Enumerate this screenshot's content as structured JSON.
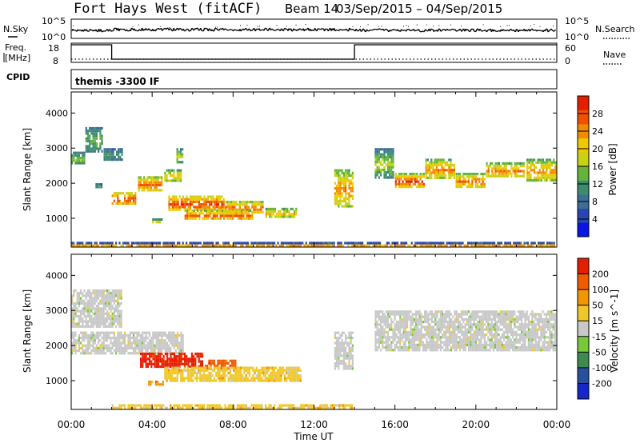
{
  "header": {
    "title": "Fort Hays West (fitACF)",
    "beam": "Beam 14",
    "date_range": "03/Sep/2015 – 04/Sep/2015"
  },
  "sky_panel": {
    "left_label": "N.Sky",
    "left_tick_top": "10^5",
    "left_tick_bottom": "10^0",
    "right_label": "N.Search",
    "right_tick_top": "10^5",
    "right_tick_bottom": "10^0"
  },
  "freq_panel": {
    "left_label_1": "Freq.",
    "left_label_2": "[MHz]",
    "left_tick_top": "18",
    "left_tick_bottom": "8",
    "right_label": "Nave",
    "right_tick_top": "60",
    "right_tick_bottom": "0",
    "freq_steps": [
      {
        "from_hour": 0,
        "to_hour": 2,
        "mhz": 18
      },
      {
        "from_hour": 2,
        "to_hour": 14,
        "mhz": 10.5
      },
      {
        "from_hour": 14,
        "to_hour": 24,
        "mhz": 18
      }
    ],
    "nave_level": 10
  },
  "cpid_panel": {
    "left_label": "CPID",
    "text": "themis -3300 IF"
  },
  "x_axis": {
    "label": "Time UT",
    "min_hour": 0,
    "max_hour": 24,
    "ticks": [
      {
        "hour": 0,
        "label": "00:00"
      },
      {
        "hour": 4,
        "label": "04:00"
      },
      {
        "hour": 8,
        "label": "08:00"
      },
      {
        "hour": 12,
        "label": "12:00"
      },
      {
        "hour": 16,
        "label": "16:00"
      },
      {
        "hour": 20,
        "label": "20:00"
      },
      {
        "hour": 24,
        "label": "00:00"
      }
    ]
  },
  "chart_data": [
    {
      "type": "heatmap",
      "quantity": "Power",
      "ylabel": "Slant Range [km]",
      "ylim": [
        180,
        4600
      ],
      "yticks": [
        1000,
        2000,
        3000,
        4000
      ],
      "colorbar": {
        "label": "Power [dB]",
        "tick_values": [
          4,
          8,
          12,
          16,
          20,
          24,
          28
        ],
        "min": 0,
        "max": 32,
        "colors": [
          "#0a14e6",
          "#2846b4",
          "#3c6e96",
          "#3c8c6e",
          "#64b43c",
          "#c8d214",
          "#f0c800",
          "#f08c00",
          "#f05000",
          "#e61e00"
        ]
      },
      "regions": [
        {
          "t0": 0.0,
          "t1": 0.7,
          "r0": 2500,
          "r1": 2900,
          "v0": 8,
          "v1": 16
        },
        {
          "t0": 0.7,
          "t1": 1.6,
          "r0": 2800,
          "r1": 3600,
          "v0": 8,
          "v1": 14
        },
        {
          "t0": 1.6,
          "t1": 2.6,
          "r0": 2600,
          "r1": 3000,
          "v0": 6,
          "v1": 12
        },
        {
          "t0": 1.2,
          "t1": 1.6,
          "r0": 1800,
          "r1": 2000,
          "v0": 6,
          "v1": 12
        },
        {
          "t0": 2.0,
          "t1": 3.3,
          "r0": 1350,
          "r1": 1750,
          "v0": 18,
          "v1": 30
        },
        {
          "t0": 3.3,
          "t1": 4.6,
          "r0": 1700,
          "r1": 2200,
          "v0": 16,
          "v1": 28
        },
        {
          "t0": 4.6,
          "t1": 5.5,
          "r0": 2000,
          "r1": 2400,
          "v0": 12,
          "v1": 22
        },
        {
          "t0": 5.2,
          "t1": 5.6,
          "r0": 2500,
          "r1": 3000,
          "v0": 10,
          "v1": 18
        },
        {
          "t0": 4.0,
          "t1": 4.6,
          "r0": 800,
          "r1": 1000,
          "v0": 10,
          "v1": 20
        },
        {
          "t0": 4.8,
          "t1": 7.6,
          "r0": 1150,
          "r1": 1650,
          "v0": 18,
          "v1": 30
        },
        {
          "t0": 7.6,
          "t1": 9.6,
          "r0": 1100,
          "r1": 1500,
          "v0": 16,
          "v1": 28
        },
        {
          "t0": 5.6,
          "t1": 9.0,
          "r0": 950,
          "r1": 1250,
          "v0": 16,
          "v1": 28
        },
        {
          "t0": 9.6,
          "t1": 11.2,
          "r0": 1000,
          "r1": 1300,
          "v0": 12,
          "v1": 22
        },
        {
          "t0": 13.0,
          "t1": 14.0,
          "r0": 1300,
          "r1": 2400,
          "v0": 14,
          "v1": 26
        },
        {
          "t0": 15.0,
          "t1": 16.0,
          "r0": 2100,
          "r1": 3000,
          "v0": 8,
          "v1": 18
        },
        {
          "t0": 16.0,
          "t1": 17.5,
          "r0": 1800,
          "r1": 2300,
          "v0": 16,
          "v1": 30
        },
        {
          "t0": 17.5,
          "t1": 19.0,
          "r0": 2100,
          "r1": 2700,
          "v0": 14,
          "v1": 26
        },
        {
          "t0": 19.0,
          "t1": 20.5,
          "r0": 1800,
          "r1": 2300,
          "v0": 14,
          "v1": 28
        },
        {
          "t0": 20.5,
          "t1": 22.5,
          "r0": 2100,
          "r1": 2600,
          "v0": 14,
          "v1": 26
        },
        {
          "t0": 22.5,
          "t1": 24.0,
          "r0": 2000,
          "r1": 2700,
          "v0": 12,
          "v1": 26
        },
        {
          "t0": 0.0,
          "t1": 24.0,
          "r0": 180,
          "r1": 330,
          "v0": 4,
          "v1": 24
        }
      ]
    },
    {
      "type": "heatmap",
      "quantity": "Velocity",
      "ylabel": "Slant Range [km]",
      "ylim": [
        180,
        4600
      ],
      "yticks": [
        1000,
        2000,
        3000,
        4000
      ],
      "colorbar": {
        "label": "Velocity [m s^-1]",
        "tick_labels": [
          "200",
          "100",
          "50",
          "15",
          "-15",
          "-50",
          "-100",
          "-200"
        ],
        "colors": [
          "#1428c8",
          "#2850a0",
          "#3c8c50",
          "#78c83c",
          "#c8c8c8",
          "#f0c828",
          "#f09600",
          "#f05a00",
          "#e61e00"
        ]
      },
      "regions": [
        {
          "t0": 0.0,
          "t1": 5.6,
          "r0": 1700,
          "r1": 2400,
          "color_index": 4
        },
        {
          "t0": 0.0,
          "t1": 2.6,
          "r0": 2500,
          "r1": 3600,
          "color_index": 4
        },
        {
          "t0": 3.4,
          "t1": 6.6,
          "r0": 1350,
          "r1": 1800,
          "color_index": 8
        },
        {
          "t0": 6.6,
          "t1": 8.2,
          "r0": 1250,
          "r1": 1600,
          "color_index": 7
        },
        {
          "t0": 4.6,
          "t1": 11.4,
          "r0": 950,
          "r1": 1400,
          "color_index": 5
        },
        {
          "t0": 3.8,
          "t1": 4.6,
          "r0": 800,
          "r1": 1000,
          "color_index": 6
        },
        {
          "t0": 13.0,
          "t1": 14.0,
          "r0": 1300,
          "r1": 2400,
          "color_index": 4
        },
        {
          "t0": 15.0,
          "t1": 24.0,
          "r0": 1800,
          "r1": 3000,
          "color_index": 4
        },
        {
          "t0": 2.0,
          "t1": 14.0,
          "r0": 180,
          "r1": 330,
          "color_index": 5
        }
      ]
    }
  ]
}
